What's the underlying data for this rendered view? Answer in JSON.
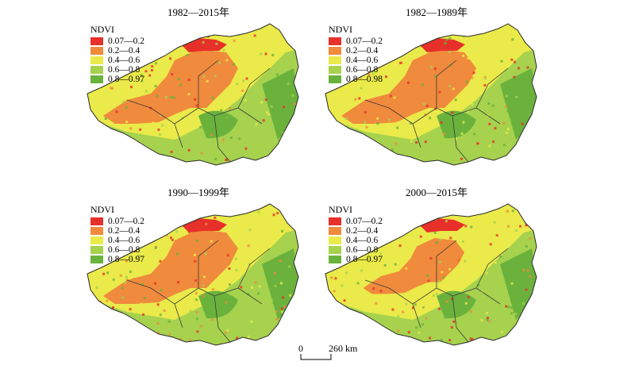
{
  "panels": [
    {
      "title": "1982—2015年",
      "legend_title": "NDVI",
      "legend": [
        "0.07—0.2",
        "0.2—0.4",
        "0.4—0.6",
        "0.6—0.8",
        "0.8—0.97"
      ]
    },
    {
      "title": "1982—1989年",
      "legend_title": "NDVI",
      "legend": [
        "0.07—0.2",
        "0.2—0.4",
        "0.4—0.6",
        "0.6—0.8",
        "0.8—0.98"
      ]
    },
    {
      "title": "1990—1999年",
      "legend_title": "NDVI",
      "legend": [
        "0.07—0.2",
        "0.2—0.4",
        "0.4—0.6",
        "0.6—0.8",
        "0.8—0.97"
      ]
    },
    {
      "title": "2000—2015年",
      "legend_title": "NDVI",
      "legend": [
        "0.07—0.2",
        "0.2—0.4",
        "0.4—0.6",
        "0.6—0.8",
        "0.8—0.97"
      ]
    }
  ],
  "legend_colors": [
    "#e8302a",
    "#f08a3c",
    "#eaea4a",
    "#a6d24e",
    "#6ab23c"
  ],
  "scale": {
    "zero": "0",
    "distance": "260 km"
  }
}
